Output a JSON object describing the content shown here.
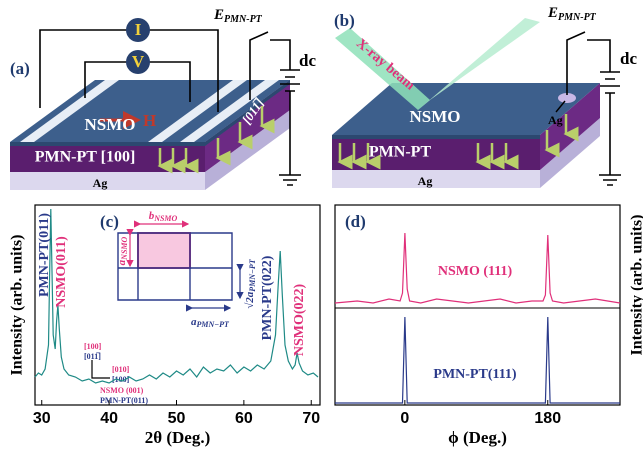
{
  "schematics": {
    "a": {
      "panel_label": "(a)",
      "current": "I",
      "voltage": "V",
      "field": "H",
      "film": "NSMO",
      "direction": "[011̅]",
      "substrate": "PMN-PT [100]",
      "electrode": "Ag",
      "bias": {
        "main": "E",
        "sub": "PMN-PT"
      },
      "source": "dc"
    },
    "b": {
      "panel_label": "(b)",
      "beam": "X-ray beam",
      "top_electrode": "Ag",
      "film": "NSMO",
      "substrate": "PMN-PT",
      "electrode": "Ag",
      "bias": {
        "main": "E",
        "sub": "PMN-PT"
      },
      "source": "dc"
    }
  },
  "chart_data": [
    {
      "type": "line",
      "panel_label": "(c)",
      "x_label": "2θ (Deg.)",
      "y_label": "Intensity (arb. units)",
      "xlim": [
        29,
        71.3
      ],
      "xticks": [
        30,
        40,
        50,
        60,
        70
      ],
      "ylim": [
        0,
        100
      ],
      "series": [
        {
          "color": "#1f8a86",
          "x": [
            29,
            29.5,
            30,
            30.5,
            31,
            31.2,
            31.35,
            31.5,
            31.7,
            32,
            32.2,
            32.4,
            32.6,
            32.9,
            33.3,
            34,
            35,
            36,
            37,
            38,
            39,
            40,
            41,
            42,
            43,
            44,
            45,
            46,
            47,
            48,
            49,
            50,
            51,
            52,
            53,
            54,
            55,
            56,
            57,
            58,
            59,
            60,
            61,
            62,
            63,
            64,
            64.7,
            65.1,
            65.4,
            65.7,
            66.1,
            66.6,
            67.2,
            67.6,
            67.9,
            68.2,
            68.7,
            69.5,
            70.3,
            71
          ],
          "values": [
            14,
            16,
            15,
            18,
            30,
            70,
            98,
            72,
            35,
            28,
            42,
            50,
            38,
            24,
            18,
            15,
            14,
            12,
            13,
            11,
            12,
            11,
            13,
            12,
            14,
            12,
            13,
            15,
            13,
            16,
            14,
            17,
            15,
            18,
            14,
            19,
            16,
            18,
            17,
            20,
            16,
            19,
            17,
            20,
            18,
            22,
            35,
            60,
            77,
            55,
            30,
            22,
            18,
            20,
            26,
            21,
            17,
            15,
            16,
            14
          ]
        }
      ],
      "annotations": [
        {
          "text": "PMN-PT(011)",
          "color": "#2a3a8a"
        },
        {
          "text": "NSMO(011)",
          "color": "#e0307a"
        },
        {
          "text": "PMN-PT(022)",
          "color": "#2a3a8a"
        },
        {
          "text": "NSMO(022)",
          "color": "#e0307a"
        }
      ],
      "inset": {
        "b_nsmo": {
          "main": "b",
          "sub": "NSMO"
        },
        "a_nsmo": {
          "main": "a",
          "sub": "NSMO"
        },
        "sqrt2_a_pmnpt": {
          "main": "√2a",
          "sub": "PMN−PT"
        },
        "a_pmnpt": {
          "main": "a",
          "sub": "PMN−PT"
        },
        "axis_labels": [
          "[100]",
          "[011̅]",
          "[010]",
          "[100]",
          "NSMO (001)",
          "PMN-PT(011)"
        ]
      }
    },
    {
      "type": "line",
      "panel_label": "(d)",
      "x_label": "ϕ (Deg.)",
      "y_label": "Intensity (arb. units)",
      "xlim": [
        -88,
        271
      ],
      "xticks": [
        0,
        180
      ],
      "ylim": [
        0,
        100
      ],
      "x": [
        -88,
        -60,
        -40,
        -20,
        -6,
        -3,
        0,
        3,
        6,
        20,
        40,
        60,
        80,
        100,
        120,
        140,
        160,
        174,
        177,
        180,
        183,
        186,
        200,
        220,
        240,
        271
      ],
      "series": [
        {
          "name": "NSMO (111)",
          "color": "#e0307a",
          "values": [
            51,
            52,
            51,
            53,
            52,
            56,
            86,
            58,
            52,
            51,
            53,
            52,
            51,
            52,
            53,
            51,
            52,
            52,
            55,
            85,
            56,
            52,
            51,
            52,
            53,
            51
          ]
        },
        {
          "name": "PMN-PT(111)",
          "color": "#2a3a8a",
          "values": [
            1,
            1,
            1,
            1,
            1,
            1,
            44,
            1,
            1,
            1,
            1,
            1,
            1,
            1,
            1,
            1,
            1,
            1,
            1,
            44,
            1,
            1,
            1,
            1,
            1,
            1
          ]
        }
      ]
    }
  ]
}
